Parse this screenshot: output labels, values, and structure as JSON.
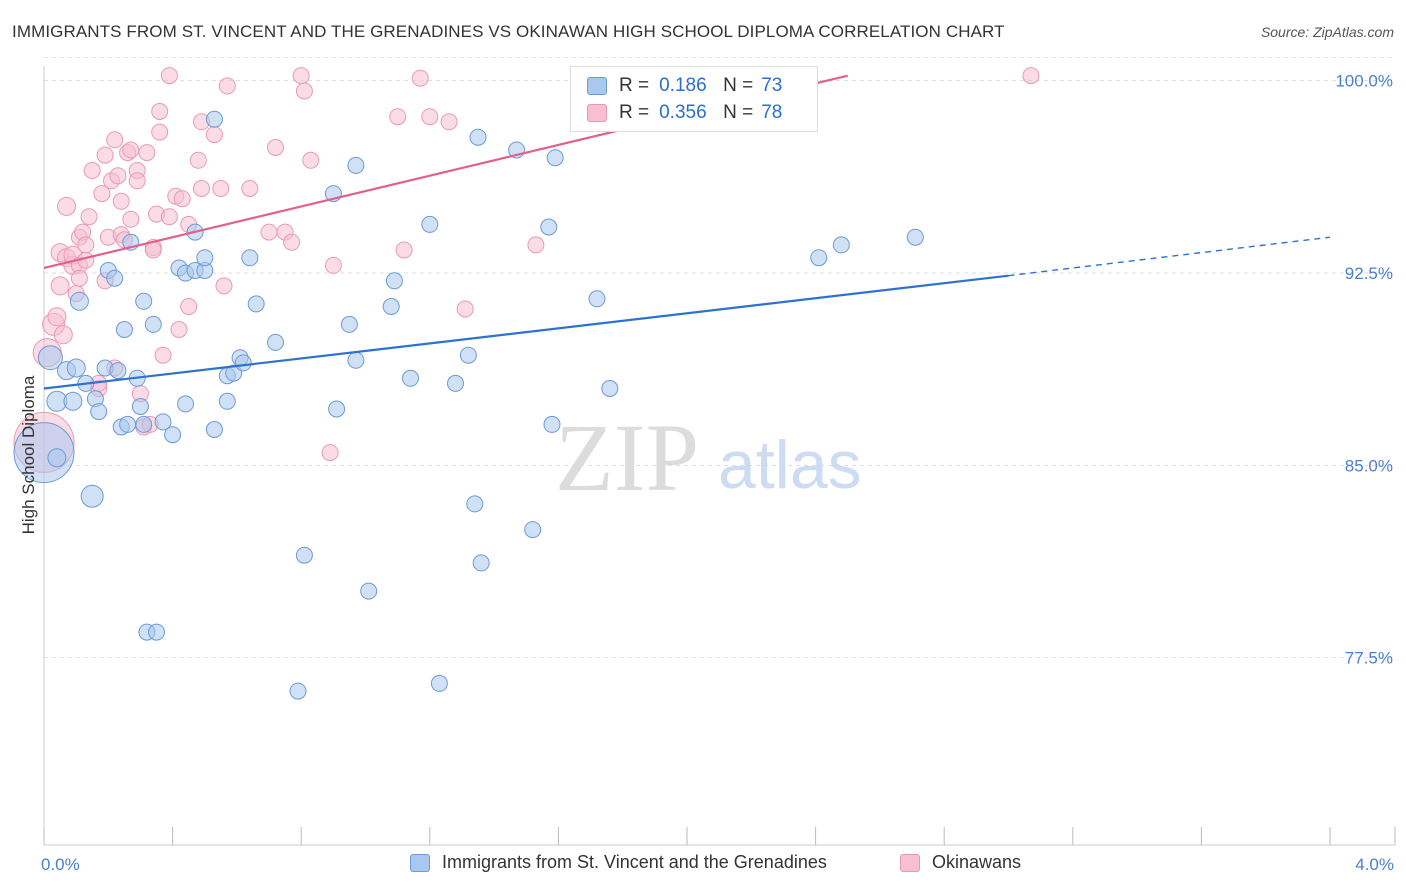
{
  "header": {
    "title": "IMMIGRANTS FROM ST. VINCENT AND THE GRENADINES VS OKINAWAN HIGH SCHOOL DIPLOMA CORRELATION CHART",
    "source": "Source: ZipAtlas.com"
  },
  "watermark": {
    "zip": "ZIP",
    "atlas": "atlas"
  },
  "legend_top": {
    "rows": [
      {
        "r_label": "R =",
        "r_value": "0.186",
        "n_label": "N =",
        "n_value": "73"
      },
      {
        "r_label": "R =",
        "r_value": "0.356",
        "n_label": "N =",
        "n_value": "78"
      }
    ]
  },
  "legend_bottom": {
    "series_a": "Immigrants from St. Vincent and the Grenadines",
    "series_b": "Okinawans"
  },
  "colors": {
    "blue_fill": "#a9c8ef",
    "blue_stroke": "#6c9ad8",
    "blue_line": "#2e72cf",
    "pink_fill": "#f7bfd1",
    "pink_stroke": "#e99ab3",
    "pink_line": "#e2618c",
    "tick_text": "#4a7fd0",
    "grid": "#dddddd"
  },
  "chart_data": {
    "type": "scatter",
    "title": "IMMIGRANTS FROM ST. VINCENT AND THE GRENADINES VS OKINAWAN HIGH SCHOOL DIPLOMA CORRELATION CHART",
    "xlabel": "",
    "ylabel": "High School Diploma",
    "x_tick_labels": [
      "0.0%",
      "4.0%"
    ],
    "y_tick_labels": [
      "100.0%",
      "92.5%",
      "85.0%",
      "77.5%"
    ],
    "y_ticks": [
      100.0,
      92.5,
      85.0,
      77.5
    ],
    "xlim": [
      0.0,
      4.0
    ],
    "ylim": [
      70.0,
      101.0
    ],
    "grid": "horizontal dashed",
    "series": [
      {
        "name": "Immigrants from St. Vincent and the Grenadines",
        "r": 0.186,
        "n": 73,
        "trend": {
          "x": [
            0.0,
            3.0
          ],
          "y": [
            87.8,
            92.2
          ],
          "dashed_extension_to": [
            4.0,
            93.7
          ]
        },
        "points": [
          [
            0.0,
            85.3,
            30
          ],
          [
            0.02,
            89.0,
            12
          ],
          [
            0.04,
            85.1,
            9
          ],
          [
            0.04,
            87.3,
            10
          ],
          [
            0.07,
            88.5,
            9
          ],
          [
            0.09,
            87.3,
            9
          ],
          [
            0.1,
            88.6,
            9
          ],
          [
            0.11,
            91.2,
            9
          ],
          [
            0.13,
            88.0,
            8
          ],
          [
            0.15,
            83.6,
            11
          ],
          [
            0.16,
            87.4,
            8
          ],
          [
            0.17,
            86.9,
            8
          ],
          [
            0.19,
            88.6,
            8
          ],
          [
            0.2,
            92.4,
            8
          ],
          [
            0.22,
            92.1,
            8
          ],
          [
            0.23,
            88.5,
            8
          ],
          [
            0.24,
            86.3,
            8
          ],
          [
            0.25,
            90.1,
            8
          ],
          [
            0.26,
            86.4,
            8
          ],
          [
            0.27,
            93.5,
            8
          ],
          [
            0.29,
            88.2,
            8
          ],
          [
            0.3,
            87.1,
            8
          ],
          [
            0.31,
            86.4,
            8
          ],
          [
            0.31,
            91.2,
            8
          ],
          [
            0.32,
            78.3,
            8
          ],
          [
            0.35,
            78.3,
            8
          ],
          [
            0.34,
            90.3,
            8
          ],
          [
            0.37,
            86.5,
            8
          ],
          [
            0.4,
            86.0,
            8
          ],
          [
            0.42,
            92.5,
            8
          ],
          [
            0.44,
            92.3,
            8
          ],
          [
            0.44,
            87.2,
            8
          ],
          [
            0.47,
            92.4,
            8
          ],
          [
            0.47,
            93.9,
            8
          ],
          [
            0.5,
            92.4,
            8
          ],
          [
            0.5,
            92.9,
            8
          ],
          [
            0.53,
            86.2,
            8
          ],
          [
            0.53,
            98.3,
            8
          ],
          [
            0.57,
            88.3,
            8
          ],
          [
            0.57,
            87.3,
            8
          ],
          [
            0.59,
            88.4,
            8
          ],
          [
            0.61,
            89.0,
            8
          ],
          [
            0.62,
            88.8,
            8
          ],
          [
            0.64,
            92.9,
            8
          ],
          [
            0.66,
            91.1,
            8
          ],
          [
            0.72,
            89.6,
            8
          ],
          [
            0.79,
            76.0,
            8
          ],
          [
            0.81,
            81.3,
            8
          ],
          [
            0.9,
            95.4,
            8
          ],
          [
            0.91,
            87.0,
            8
          ],
          [
            0.95,
            90.3,
            8
          ],
          [
            0.97,
            88.9,
            8
          ],
          [
            0.97,
            96.5,
            8
          ],
          [
            1.01,
            79.9,
            8
          ],
          [
            1.08,
            91.0,
            8
          ],
          [
            1.09,
            92.0,
            8
          ],
          [
            1.14,
            88.2,
            8
          ],
          [
            1.2,
            94.2,
            8
          ],
          [
            1.23,
            76.3,
            8
          ],
          [
            1.28,
            88.0,
            8
          ],
          [
            1.32,
            89.1,
            8
          ],
          [
            1.34,
            83.3,
            8
          ],
          [
            1.35,
            97.6,
            8
          ],
          [
            1.36,
            81.0,
            8
          ],
          [
            1.47,
            97.1,
            8
          ],
          [
            1.52,
            82.3,
            8
          ],
          [
            1.57,
            94.1,
            8
          ],
          [
            1.58,
            86.4,
            8
          ],
          [
            1.59,
            96.8,
            8
          ],
          [
            1.72,
            91.3,
            8
          ],
          [
            1.76,
            87.8,
            8
          ],
          [
            2.41,
            92.9,
            8
          ],
          [
            2.48,
            93.4,
            8
          ],
          [
            2.71,
            93.7,
            8
          ]
        ]
      },
      {
        "name": "Okinawans",
        "r": 0.356,
        "n": 78,
        "trend": {
          "x": [
            0.0,
            2.5
          ],
          "y": [
            92.5,
            100.0
          ]
        },
        "points": [
          [
            0.0,
            85.7,
            30
          ],
          [
            0.01,
            89.2,
            14
          ],
          [
            0.03,
            90.3,
            11
          ],
          [
            0.04,
            90.6,
            9
          ],
          [
            0.05,
            91.8,
            9
          ],
          [
            0.05,
            93.1,
            9
          ],
          [
            0.06,
            89.9,
            9
          ],
          [
            0.07,
            94.9,
            9
          ],
          [
            0.07,
            92.9,
            9
          ],
          [
            0.09,
            92.6,
            9
          ],
          [
            0.09,
            93.0,
            9
          ],
          [
            0.1,
            91.5,
            8
          ],
          [
            0.11,
            92.6,
            8
          ],
          [
            0.11,
            93.7,
            8
          ],
          [
            0.11,
            92.1,
            8
          ],
          [
            0.12,
            93.9,
            8
          ],
          [
            0.13,
            92.8,
            8
          ],
          [
            0.13,
            93.4,
            8
          ],
          [
            0.14,
            94.5,
            8
          ],
          [
            0.15,
            96.3,
            8
          ],
          [
            0.17,
            87.8,
            8
          ],
          [
            0.17,
            88.0,
            8
          ],
          [
            0.18,
            95.4,
            8
          ],
          [
            0.19,
            92.0,
            8
          ],
          [
            0.19,
            96.9,
            8
          ],
          [
            0.2,
            93.7,
            8
          ],
          [
            0.21,
            95.9,
            8
          ],
          [
            0.22,
            97.5,
            8
          ],
          [
            0.22,
            88.6,
            8
          ],
          [
            0.23,
            96.1,
            8
          ],
          [
            0.24,
            95.1,
            8
          ],
          [
            0.24,
            93.8,
            8
          ],
          [
            0.25,
            93.6,
            8
          ],
          [
            0.26,
            97.0,
            8
          ],
          [
            0.27,
            97.1,
            8
          ],
          [
            0.27,
            94.4,
            8
          ],
          [
            0.29,
            96.3,
            8
          ],
          [
            0.29,
            95.9,
            8
          ],
          [
            0.3,
            87.6,
            8
          ],
          [
            0.31,
            86.3,
            8
          ],
          [
            0.32,
            97.0,
            8
          ],
          [
            0.33,
            86.4,
            8
          ],
          [
            0.34,
            93.3,
            8
          ],
          [
            0.34,
            93.2,
            8
          ],
          [
            0.35,
            94.6,
            8
          ],
          [
            0.36,
            97.8,
            8
          ],
          [
            0.36,
            98.6,
            8
          ],
          [
            0.37,
            89.1,
            8
          ],
          [
            0.39,
            100.0,
            8
          ],
          [
            0.39,
            94.5,
            8
          ],
          [
            0.41,
            95.3,
            8
          ],
          [
            0.42,
            90.1,
            8
          ],
          [
            0.43,
            95.2,
            8
          ],
          [
            0.45,
            91.0,
            8
          ],
          [
            0.45,
            94.2,
            8
          ],
          [
            0.48,
            96.7,
            8
          ],
          [
            0.49,
            95.6,
            8
          ],
          [
            0.49,
            98.2,
            8
          ],
          [
            0.53,
            97.7,
            8
          ],
          [
            0.55,
            95.6,
            8
          ],
          [
            0.56,
            91.8,
            8
          ],
          [
            0.57,
            99.6,
            8
          ],
          [
            0.64,
            95.6,
            8
          ],
          [
            0.7,
            93.9,
            8
          ],
          [
            0.72,
            97.2,
            8
          ],
          [
            0.75,
            93.9,
            8
          ],
          [
            0.77,
            93.5,
            8
          ],
          [
            0.8,
            100.0,
            8
          ],
          [
            0.81,
            99.4,
            8
          ],
          [
            0.83,
            96.7,
            8
          ],
          [
            0.89,
            85.3,
            8
          ],
          [
            0.9,
            92.6,
            8
          ],
          [
            1.12,
            93.2,
            8
          ],
          [
            1.1,
            98.4,
            8
          ],
          [
            1.17,
            99.9,
            8
          ],
          [
            1.2,
            98.4,
            8
          ],
          [
            1.26,
            98.2,
            8
          ],
          [
            1.31,
            90.9,
            8
          ],
          [
            1.53,
            93.4,
            8
          ],
          [
            3.07,
            100.0,
            8
          ]
        ]
      }
    ]
  }
}
